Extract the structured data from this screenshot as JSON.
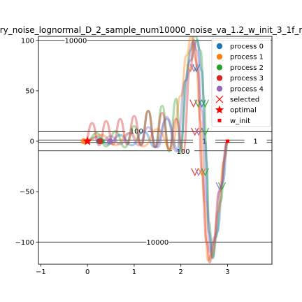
{
  "chart_data": {
    "type": "line",
    "title": "ry_noise_lognormal_D_2_sample_num10000_noise_va_1.2_w_init_3_1f_r",
    "xlabel": "",
    "ylabel": "",
    "xlim": [
      -1.05,
      3.95
    ],
    "ylim": [
      -122,
      104
    ],
    "x_ticks": [
      -1,
      0,
      1,
      2,
      3
    ],
    "x_tick_labels": [
      "−1",
      "0",
      "1",
      "2",
      "3"
    ],
    "y_ticks": [
      100,
      50,
      0,
      -50,
      -100
    ],
    "y_tick_labels": [
      "100",
      "50",
      "0",
      "−50",
      "−100"
    ],
    "grid": false,
    "legend_position": "upper right",
    "contours": [
      {
        "label": "10000",
        "levels": [
          100,
          -100
        ],
        "label_at": [
          {
            "x": -0.25,
            "y": 100
          },
          {
            "x": 1.5,
            "y": -100
          }
        ]
      },
      {
        "label": "100",
        "levels": [
          9.5,
          -9.5
        ],
        "label_at": [
          {
            "x": 1.05,
            "y": 10
          },
          {
            "x": 2.05,
            "y": -10
          }
        ]
      },
      {
        "label": "1",
        "levels": [
          1.2,
          -1.2
        ],
        "label_at": [
          {
            "x": 2.5,
            "y": 0
          },
          {
            "x": 3.6,
            "y": 0
          }
        ]
      }
    ],
    "series": [
      {
        "name": "process 0",
        "color": "#1f77b4"
      },
      {
        "name": "process 1",
        "color": "#ff7f0e"
      },
      {
        "name": "process 2",
        "color": "#2ca02c"
      },
      {
        "name": "process 3",
        "color": "#d62728"
      },
      {
        "name": "process 4",
        "color": "#9467bd"
      }
    ],
    "curves": [
      {
        "color": "#2ca02c",
        "points": [
          [
            0.0,
            1
          ],
          [
            0.2,
            8
          ],
          [
            0.4,
            -5
          ],
          [
            0.6,
            10
          ],
          [
            0.8,
            -6
          ],
          [
            1.0,
            15
          ],
          [
            1.15,
            -3
          ],
          [
            1.3,
            30
          ],
          [
            1.45,
            -5
          ],
          [
            1.6,
            35
          ],
          [
            1.75,
            -10
          ],
          [
            1.9,
            42
          ],
          [
            2.0,
            -12
          ],
          [
            2.1,
            60
          ],
          [
            2.2,
            90
          ],
          [
            2.3,
            105
          ],
          [
            2.42,
            90
          ],
          [
            2.5,
            40
          ],
          [
            2.55,
            -20
          ],
          [
            2.6,
            -80
          ],
          [
            2.68,
            -116
          ],
          [
            2.75,
            -95
          ],
          [
            2.85,
            -60
          ],
          [
            2.95,
            -15
          ],
          [
            3.0,
            0
          ]
        ]
      },
      {
        "color": "#1f77b4",
        "points": [
          [
            -0.05,
            0
          ],
          [
            0.2,
            4
          ],
          [
            0.45,
            -3
          ],
          [
            0.7,
            6
          ],
          [
            0.95,
            -4
          ],
          [
            1.2,
            10
          ],
          [
            1.45,
            -6
          ],
          [
            1.7,
            22
          ],
          [
            1.95,
            -10
          ],
          [
            2.2,
            80
          ],
          [
            2.35,
            100
          ],
          [
            2.45,
            70
          ],
          [
            2.52,
            0
          ],
          [
            2.6,
            -90
          ],
          [
            2.68,
            -115
          ],
          [
            2.78,
            -90
          ],
          [
            2.9,
            -40
          ],
          [
            3.0,
            0
          ]
        ]
      },
      {
        "color": "#ff7f0e",
        "points": [
          [
            -0.05,
            0
          ],
          [
            0.3,
            6
          ],
          [
            0.6,
            -4
          ],
          [
            0.9,
            8
          ],
          [
            1.2,
            -5
          ],
          [
            1.5,
            12
          ],
          [
            1.8,
            -8
          ],
          [
            2.0,
            45
          ],
          [
            2.12,
            85
          ],
          [
            2.22,
            104
          ],
          [
            2.32,
            80
          ],
          [
            2.42,
            20
          ],
          [
            2.5,
            -60
          ],
          [
            2.58,
            -118
          ],
          [
            2.68,
            -110
          ],
          [
            2.8,
            -70
          ],
          [
            2.92,
            -20
          ],
          [
            3.0,
            0
          ]
        ]
      },
      {
        "color": "#d62728",
        "points": [
          [
            -0.05,
            0
          ],
          [
            0.1,
            18
          ],
          [
            0.25,
            -4
          ],
          [
            0.4,
            20
          ],
          [
            0.55,
            -3
          ],
          [
            0.7,
            22
          ],
          [
            0.85,
            -3
          ],
          [
            1.0,
            25
          ],
          [
            1.15,
            -4
          ],
          [
            1.3,
            30
          ],
          [
            1.45,
            -6
          ],
          [
            1.6,
            28
          ],
          [
            1.75,
            -8
          ],
          [
            1.9,
            22
          ],
          [
            2.05,
            -10
          ],
          [
            2.2,
            70
          ],
          [
            2.28,
            100
          ],
          [
            2.36,
            70
          ],
          [
            2.45,
            -30
          ],
          [
            2.55,
            -100
          ],
          [
            2.62,
            -120
          ],
          [
            2.7,
            -100
          ],
          [
            2.82,
            -50
          ],
          [
            3.0,
            0
          ]
        ]
      },
      {
        "color": "#9467bd",
        "points": [
          [
            0.3,
            0
          ],
          [
            0.5,
            5
          ],
          [
            0.7,
            -3
          ],
          [
            0.9,
            8
          ],
          [
            1.1,
            -4
          ],
          [
            1.3,
            14
          ],
          [
            1.5,
            -6
          ],
          [
            1.7,
            24
          ],
          [
            1.9,
            -10
          ],
          [
            2.1,
            60
          ],
          [
            2.25,
            98
          ],
          [
            2.35,
            90
          ],
          [
            2.45,
            30
          ],
          [
            2.55,
            -60
          ],
          [
            2.63,
            -110
          ],
          [
            2.72,
            -95
          ],
          [
            2.85,
            -45
          ],
          [
            3.0,
            0
          ]
        ]
      }
    ],
    "selected_points": [
      {
        "x": 2.2,
        "y": 72,
        "color": "#ff7f0e"
      },
      {
        "x": 2.28,
        "y": 72,
        "color": "#9467bd"
      },
      {
        "x": 2.33,
        "y": 72,
        "color": "#1f77b4"
      },
      {
        "x": 2.27,
        "y": 37,
        "color": "#d62728"
      },
      {
        "x": 2.37,
        "y": 37,
        "color": "#2ca02c"
      },
      {
        "x": 2.45,
        "y": 37,
        "color": "#1f77b4"
      },
      {
        "x": 2.52,
        "y": 37,
        "color": "#2ca02c"
      },
      {
        "x": 2.3,
        "y": 9,
        "color": "#d62728"
      },
      {
        "x": 2.38,
        "y": 9,
        "color": "#9467bd"
      },
      {
        "x": 2.52,
        "y": 9,
        "color": "#2ca02c"
      },
      {
        "x": 2.3,
        "y": -31,
        "color": "#d62728"
      },
      {
        "x": 2.38,
        "y": -31,
        "color": "#9467bd"
      },
      {
        "x": 2.45,
        "y": -31,
        "color": "#ff7f0e"
      },
      {
        "x": 2.52,
        "y": -31,
        "color": "#2ca02c"
      },
      {
        "x": 2.83,
        "y": -45,
        "color": "#9467bd"
      },
      {
        "x": 2.88,
        "y": -45,
        "color": "#2ca02c"
      }
    ],
    "start_points": [
      {
        "x": 0.25,
        "y": 0,
        "color": "#1f77b4"
      },
      {
        "x": -0.08,
        "y": 0,
        "color": "#ff7f0e"
      },
      {
        "x": 0.3,
        "y": 0,
        "color": "#2ca02c"
      },
      {
        "x": 0.27,
        "y": 0,
        "color": "#d62728"
      },
      {
        "x": 0.48,
        "y": 0,
        "color": "#9467bd"
      }
    ],
    "optimal": {
      "x": 0.0,
      "y": 0,
      "color": "#ff0000"
    },
    "w_init": {
      "x": 3.0,
      "y": 0,
      "color": "#ff0000"
    },
    "legend": [
      {
        "label": "process 0",
        "marker": "circle",
        "color": "#1f77b4"
      },
      {
        "label": "process 1",
        "marker": "circle",
        "color": "#ff7f0e"
      },
      {
        "label": "process 2",
        "marker": "circle",
        "color": "#2ca02c"
      },
      {
        "label": "process 3",
        "marker": "circle",
        "color": "#d62728"
      },
      {
        "label": "process 4",
        "marker": "circle",
        "color": "#9467bd"
      },
      {
        "label": "selected",
        "marker": "x",
        "color": "#ff0000"
      },
      {
        "label": "optimal",
        "marker": "star",
        "color": "#ff0000"
      },
      {
        "label": "w_init",
        "marker": "square",
        "color": "#ff0000"
      }
    ]
  }
}
